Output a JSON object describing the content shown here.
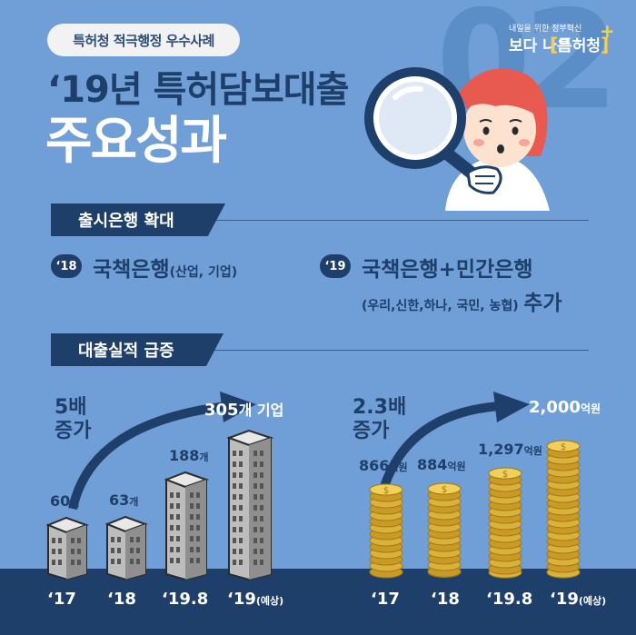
{
  "header": {
    "badge": "특허청 적극행정 우수사례",
    "title_line1": "‘19년 특허담보대출",
    "title_line2": "주요성과",
    "background_number": "02"
  },
  "logo": {
    "tagline": "내일을 위한 정부혁신",
    "slogan": "보다 나은",
    "brand": "특허청"
  },
  "section1": {
    "label": "출시은행 확대",
    "item1": {
      "year": "‘18",
      "main": "국책은행",
      "detail": "(산업, 기업)"
    },
    "item2": {
      "year": "‘19",
      "main": "국책은행+민간은행",
      "detail": "(우리,신한,하나, 국민, 농협)",
      "suffix": "추가"
    }
  },
  "section2": {
    "label": "대출실적 급증",
    "left": {
      "multiplier_line1": "5배",
      "multiplier_line2": "증가",
      "unit": "개",
      "final_unit": "개 기업",
      "values": [
        60,
        63,
        188,
        305
      ]
    },
    "right": {
      "multiplier_line1": "2.3배",
      "multiplier_line2": "증가",
      "unit": "억원",
      "values": [
        "866",
        "884",
        "1,297",
        "2,000"
      ]
    },
    "x_labels": [
      "‘17",
      "‘18",
      "‘19.8",
      "‘19"
    ],
    "last_label_note": "(예상)"
  },
  "colors": {
    "background": "#6f9fd6",
    "navy": "#1f3f6b",
    "accent": "#ffce3a",
    "building": "#c8c8c8",
    "coin": "#d9b23c"
  }
}
